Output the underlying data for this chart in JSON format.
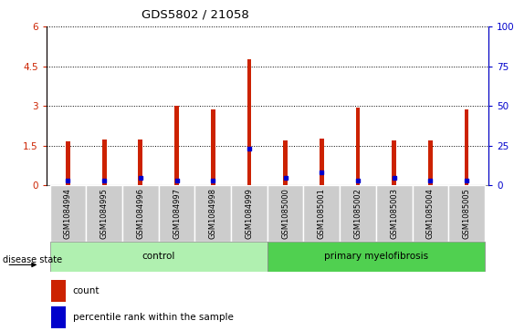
{
  "title": "GDS5802 / 21058",
  "samples": [
    "GSM1084994",
    "GSM1084995",
    "GSM1084996",
    "GSM1084997",
    "GSM1084998",
    "GSM1084999",
    "GSM1085000",
    "GSM1085001",
    "GSM1085002",
    "GSM1085003",
    "GSM1085004",
    "GSM1085005"
  ],
  "count_values": [
    1.65,
    1.72,
    1.72,
    3.02,
    2.88,
    4.75,
    1.68,
    1.75,
    2.93,
    1.7,
    1.7,
    2.88
  ],
  "percentile_values": [
    3.0,
    3.0,
    5.0,
    3.0,
    3.0,
    23.0,
    5.0,
    8.0,
    3.0,
    5.0,
    3.0,
    3.0
  ],
  "groups": [
    {
      "label": "control",
      "start": 0,
      "end": 6,
      "color": "#b0f0b0"
    },
    {
      "label": "primary myelofibrosis",
      "start": 6,
      "end": 12,
      "color": "#50d050"
    }
  ],
  "ylim_left": [
    0,
    6
  ],
  "ylim_right": [
    0,
    100
  ],
  "yticks_left": [
    0,
    1.5,
    3.0,
    4.5,
    6.0
  ],
  "ytick_labels_left": [
    "0",
    "1.5",
    "3",
    "4.5",
    "6"
  ],
  "yticks_right": [
    0,
    25,
    50,
    75,
    100
  ],
  "ytick_labels_right": [
    "0",
    "25",
    "50",
    "75",
    "100%"
  ],
  "bar_color": "#cc2200",
  "dot_color": "#0000cc",
  "bar_width": 0.12,
  "left_tick_color": "#cc2200",
  "right_tick_color": "#0000cc",
  "background_color": "#ffffff",
  "disease_state_label": "disease state",
  "legend_count_label": "count",
  "legend_percentile_label": "percentile rank within the sample",
  "tick_area_color": "#cccccc",
  "group_border_color": "#888888"
}
